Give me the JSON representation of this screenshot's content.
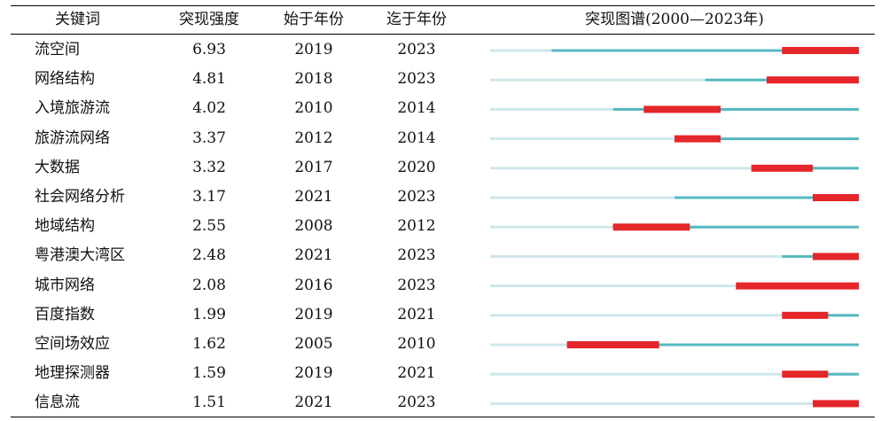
{
  "headers": {
    "keyword": "关键词",
    "strength": "突现强度",
    "begin": "始于年份",
    "end": "迄于年份",
    "map": "突现图谱(2000—2023年)"
  },
  "colors": {
    "base": "#cfe6ea",
    "active": "#55b9c0",
    "burst": "#e5262a"
  },
  "chart_data": {
    "type": "table",
    "timeline_range": [
      2000,
      2023
    ],
    "rows": [
      {
        "keyword": "流空间",
        "strength": "6.93",
        "begin": "2019",
        "end": "2023",
        "active_start": 2004
      },
      {
        "keyword": "网络结构",
        "strength": "4.81",
        "begin": "2018",
        "end": "2023",
        "active_start": 2014
      },
      {
        "keyword": "入境旅游流",
        "strength": "4.02",
        "begin": "2010",
        "end": "2014",
        "active_start": 2008
      },
      {
        "keyword": "旅游流网络",
        "strength": "3.37",
        "begin": "2012",
        "end": "2014",
        "active_start": 2012
      },
      {
        "keyword": "大数据",
        "strength": "3.32",
        "begin": "2017",
        "end": "2020",
        "active_start": 2017
      },
      {
        "keyword": "社会网络分析",
        "strength": "3.17",
        "begin": "2021",
        "end": "2023",
        "active_start": 2012
      },
      {
        "keyword": "地域结构",
        "strength": "2.55",
        "begin": "2008",
        "end": "2012",
        "active_start": 2008
      },
      {
        "keyword": "粤港澳大湾区",
        "strength": "2.48",
        "begin": "2021",
        "end": "2023",
        "active_start": 2019
      },
      {
        "keyword": "城市网络",
        "strength": "2.08",
        "begin": "2016",
        "end": "2023",
        "active_start": 2016
      },
      {
        "keyword": "百度指数",
        "strength": "1.99",
        "begin": "2019",
        "end": "2021",
        "active_start": 2019
      },
      {
        "keyword": "空间场效应",
        "strength": "1.62",
        "begin": "2005",
        "end": "2010",
        "active_start": 2005
      },
      {
        "keyword": "地理探测器",
        "strength": "1.59",
        "begin": "2019",
        "end": "2021",
        "active_start": 2019
      },
      {
        "keyword": "信息流",
        "strength": "1.51",
        "begin": "2021",
        "end": "2023",
        "active_start": 2021
      }
    ]
  }
}
